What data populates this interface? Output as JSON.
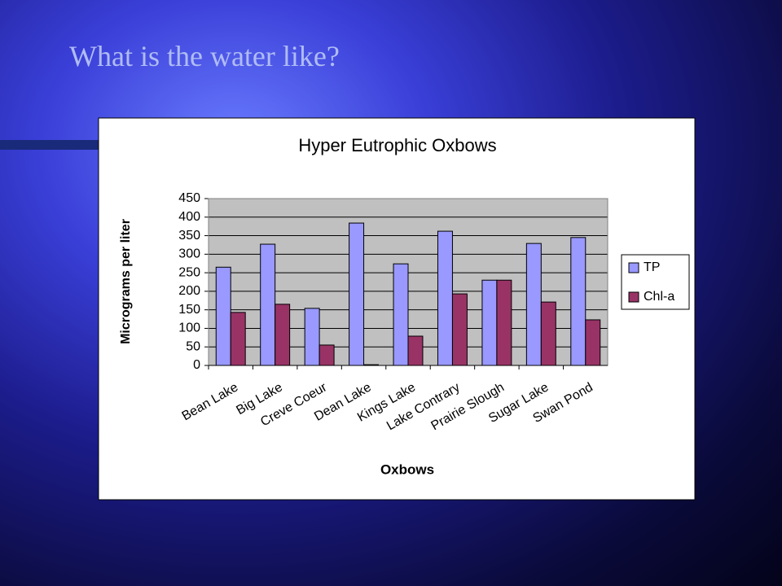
{
  "title": "What is the water like?",
  "chart_data": {
    "type": "bar",
    "title": "Hyper Eutrophic Oxbows",
    "x_label": "Oxbows",
    "y_label": "Micrograms per liter",
    "categories": [
      "Bean Lake",
      "Big Lake",
      "Creve Coeur",
      "Dean Lake",
      "Kings Lake",
      "Lake Contrary",
      "Prairie Slough",
      "Sugar Lake",
      "Swan Pond"
    ],
    "series": [
      {
        "name": "TP",
        "color": "#9999ff",
        "values": [
          265,
          327,
          154,
          384,
          274,
          362,
          230,
          329,
          345
        ]
      },
      {
        "name": "Chl-a",
        "color": "#993366",
        "values": [
          143,
          165,
          55,
          2,
          79,
          193,
          230,
          171,
          123
        ]
      }
    ],
    "ylim": [
      0,
      450
    ],
    "yticks": [
      0,
      50,
      100,
      150,
      200,
      250,
      300,
      350,
      400,
      450
    ],
    "grid": true,
    "legend": "right"
  }
}
